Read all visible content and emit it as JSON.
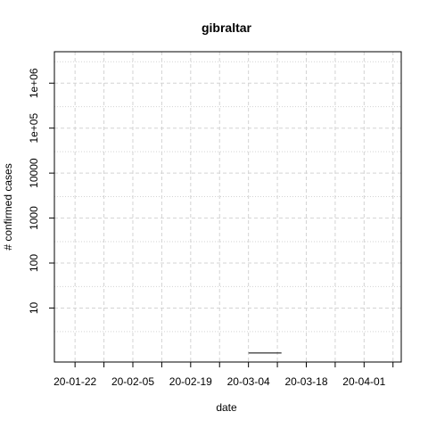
{
  "chart_data": {
    "type": "line",
    "title": "gibraltar",
    "xlabel": "date",
    "ylabel": "# confirmed cases",
    "y_scale": "log10",
    "grid": true,
    "x_tick_labels": [
      "20-01-22",
      "20-02-05",
      "20-02-19",
      "20-03-04",
      "20-03-18",
      "20-04-01"
    ],
    "x_ticks": [
      "2020-01-22",
      "2020-02-05",
      "2020-02-19",
      "2020-03-04",
      "2020-03-18",
      "2020-04-01"
    ],
    "x_minor_ticks": [
      "2020-01-29",
      "2020-02-12",
      "2020-02-26",
      "2020-03-11",
      "2020-03-25",
      "2020-04-08"
    ],
    "xlim": [
      "2020-01-17",
      "2020-04-10"
    ],
    "y_tick_labels": [
      "10",
      "100",
      "1000",
      "10000",
      "1e+05",
      "1e+06"
    ],
    "y_ticks": [
      10,
      100,
      1000,
      10000,
      100000,
      1000000
    ],
    "ylim": [
      0.63,
      5000000
    ],
    "series": [
      {
        "x": [
          "2020-03-04",
          "2020-03-05",
          "2020-03-06",
          "2020-03-07",
          "2020-03-08",
          "2020-03-09",
          "2020-03-10",
          "2020-03-11",
          "2020-03-12"
        ],
        "y": [
          1,
          1,
          1,
          1,
          1,
          1,
          1,
          1,
          1
        ],
        "color": "#000000"
      }
    ]
  }
}
